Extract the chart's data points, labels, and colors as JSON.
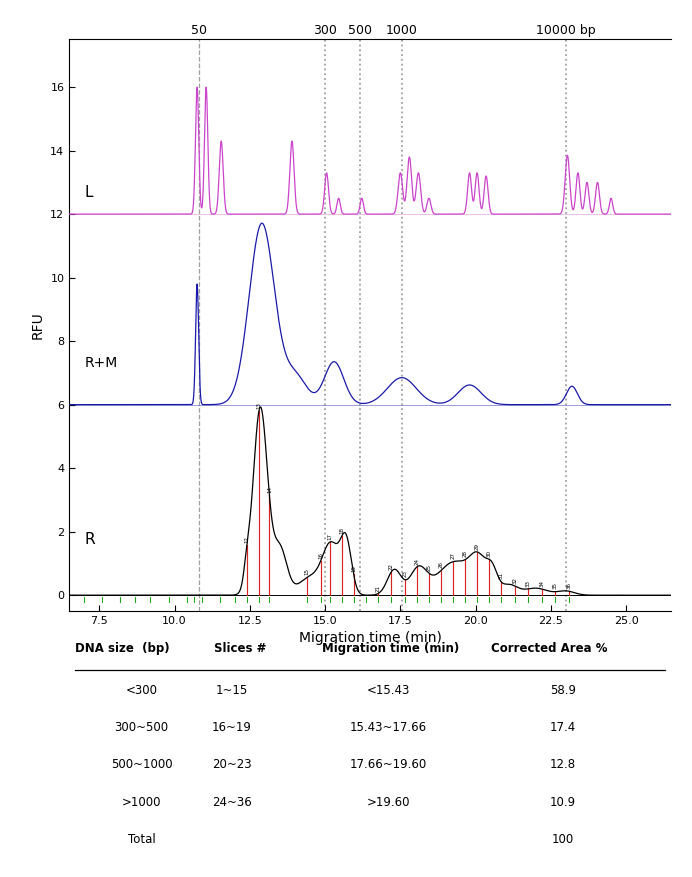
{
  "x_min": 6.5,
  "x_max": 26.5,
  "y_min": -0.5,
  "y_max": 17.5,
  "bp_labels": [
    "50",
    "300",
    "500",
    "1000",
    "10000 bp"
  ],
  "bp_label_times": [
    10.8,
    15.0,
    16.15,
    17.55,
    23.0
  ],
  "dashed_line": 10.8,
  "dotted_lines": [
    15.0,
    16.15,
    17.55,
    23.0
  ],
  "ladder_color": "#cc44cc",
  "sample_color": "#1a1aaa",
  "r_bar_color": "#dd2222",
  "r_green_color": "#22aa22",
  "ladder_base": 12.0,
  "rm_base": 6.0,
  "yticks": [
    0,
    2,
    4,
    6,
    8,
    10,
    12,
    14,
    16
  ],
  "xticks": [
    7.5,
    10.0,
    12.5,
    15.0,
    17.5,
    20.0,
    22.5,
    25.0
  ],
  "xlabel": "Migration time (min)",
  "ylabel": "RFU",
  "table_headers": [
    "DNA size  (bp)",
    "Slices #",
    "Migration time (min)",
    "Corrected Area %"
  ],
  "table_rows": [
    [
      "<300",
      "1~15",
      "<15.43",
      "58.9"
    ],
    [
      "300~500",
      "16~19",
      "15.43~17.66",
      "17.4"
    ],
    [
      "500~1000",
      "20~23",
      "17.66~19.60",
      "12.8"
    ],
    [
      ">1000",
      "24~36",
      ">19.60",
      "10.9"
    ],
    [
      "Total",
      "",
      "",
      "100"
    ]
  ]
}
